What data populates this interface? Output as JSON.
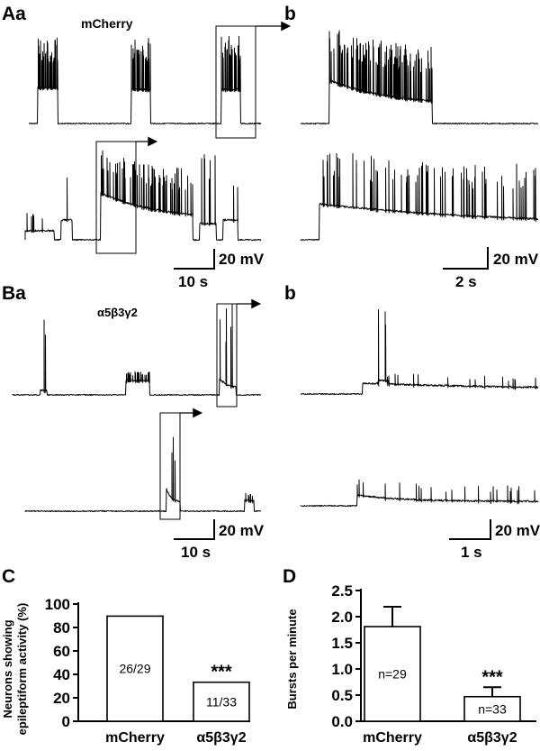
{
  "figure": {
    "panel_labels": {
      "A": "Aa",
      "A_b": "b",
      "B": "Ba",
      "B_b": "b",
      "C": "C",
      "D": "D"
    },
    "trace_titles": {
      "A": "mCherry",
      "B": "α5β3γ2"
    },
    "scalebars": {
      "Aa": {
        "voltage": "20 mV",
        "time": "10 s"
      },
      "Ab": {
        "voltage": "20 mV",
        "time": "2 s"
      },
      "Ba": {
        "voltage": "20 mV",
        "time": "10 s"
      },
      "Bb": {
        "voltage": "20 mV",
        "time": "1 s"
      }
    }
  },
  "chart_data": [
    {
      "panel": "C",
      "type": "bar",
      "categories": [
        "mCherry",
        "α5β3γ2"
      ],
      "values": [
        89.7,
        33.3
      ],
      "bar_labels": [
        "26/29",
        "11/33"
      ],
      "ylabel": "Neurons showing epileptiform activity (%)",
      "ylim": [
        0,
        100
      ],
      "yticks": [
        "0",
        "20",
        "40",
        "60",
        "80",
        "100"
      ],
      "significance": [
        null,
        "***"
      ],
      "grid": false
    },
    {
      "panel": "D",
      "type": "bar",
      "categories": [
        "mCherry",
        "α5β3γ2"
      ],
      "values": [
        1.81,
        0.47
      ],
      "errors": [
        0.38,
        0.18
      ],
      "bar_labels": [
        "n=29",
        "n=33"
      ],
      "ylabel": "Bursts per minute",
      "ylim": [
        0,
        2.5
      ],
      "yticks": [
        "0.0",
        "0.5",
        "1.0",
        "1.5",
        "2.0",
        "2.5"
      ],
      "significance": [
        null,
        "***"
      ],
      "grid": false
    }
  ]
}
